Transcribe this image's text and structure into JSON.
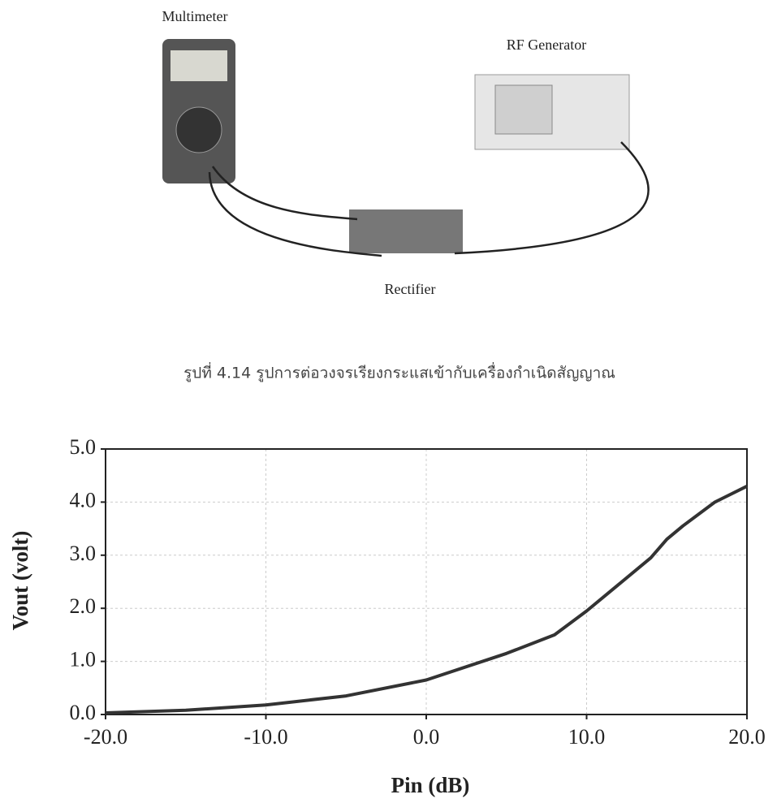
{
  "figure": {
    "labels": {
      "multimeter": "Multimeter",
      "generator": "RF Generator",
      "rectifier": "Rectifier"
    },
    "caption": "รูปที่ 4.14 รูปการต่อวงจรเรียงกระแสเข้ากับเครื่องกำเนิดสัญญาณ"
  },
  "chart_data": {
    "type": "line",
    "x_label": "Pin (dB)",
    "y_label": "Vout (volt)",
    "x": [
      -20,
      -15,
      -10,
      -5,
      0,
      5,
      8,
      10,
      12,
      14,
      15,
      16,
      18,
      20
    ],
    "values": [
      0.03,
      0.08,
      0.18,
      0.35,
      0.65,
      1.15,
      1.5,
      1.95,
      2.45,
      2.95,
      3.3,
      3.55,
      4.0,
      4.3
    ],
    "color": "#333333",
    "xlim": [
      -20,
      20
    ],
    "ylim": [
      0,
      5
    ],
    "xticks": [
      {
        "value": -20,
        "label": "-20.0"
      },
      {
        "value": -10,
        "label": "-10.0"
      },
      {
        "value": 0,
        "label": "0.0"
      },
      {
        "value": 10,
        "label": "10.0"
      },
      {
        "value": 20,
        "label": "20.0"
      }
    ],
    "yticks": [
      {
        "value": 0,
        "label": "0.0"
      },
      {
        "value": 1,
        "label": "1.0"
      },
      {
        "value": 2,
        "label": "2.0"
      },
      {
        "value": 3,
        "label": "3.0"
      },
      {
        "value": 4,
        "label": "4.0"
      },
      {
        "value": 5,
        "label": "5.0"
      }
    ],
    "grid": true
  }
}
